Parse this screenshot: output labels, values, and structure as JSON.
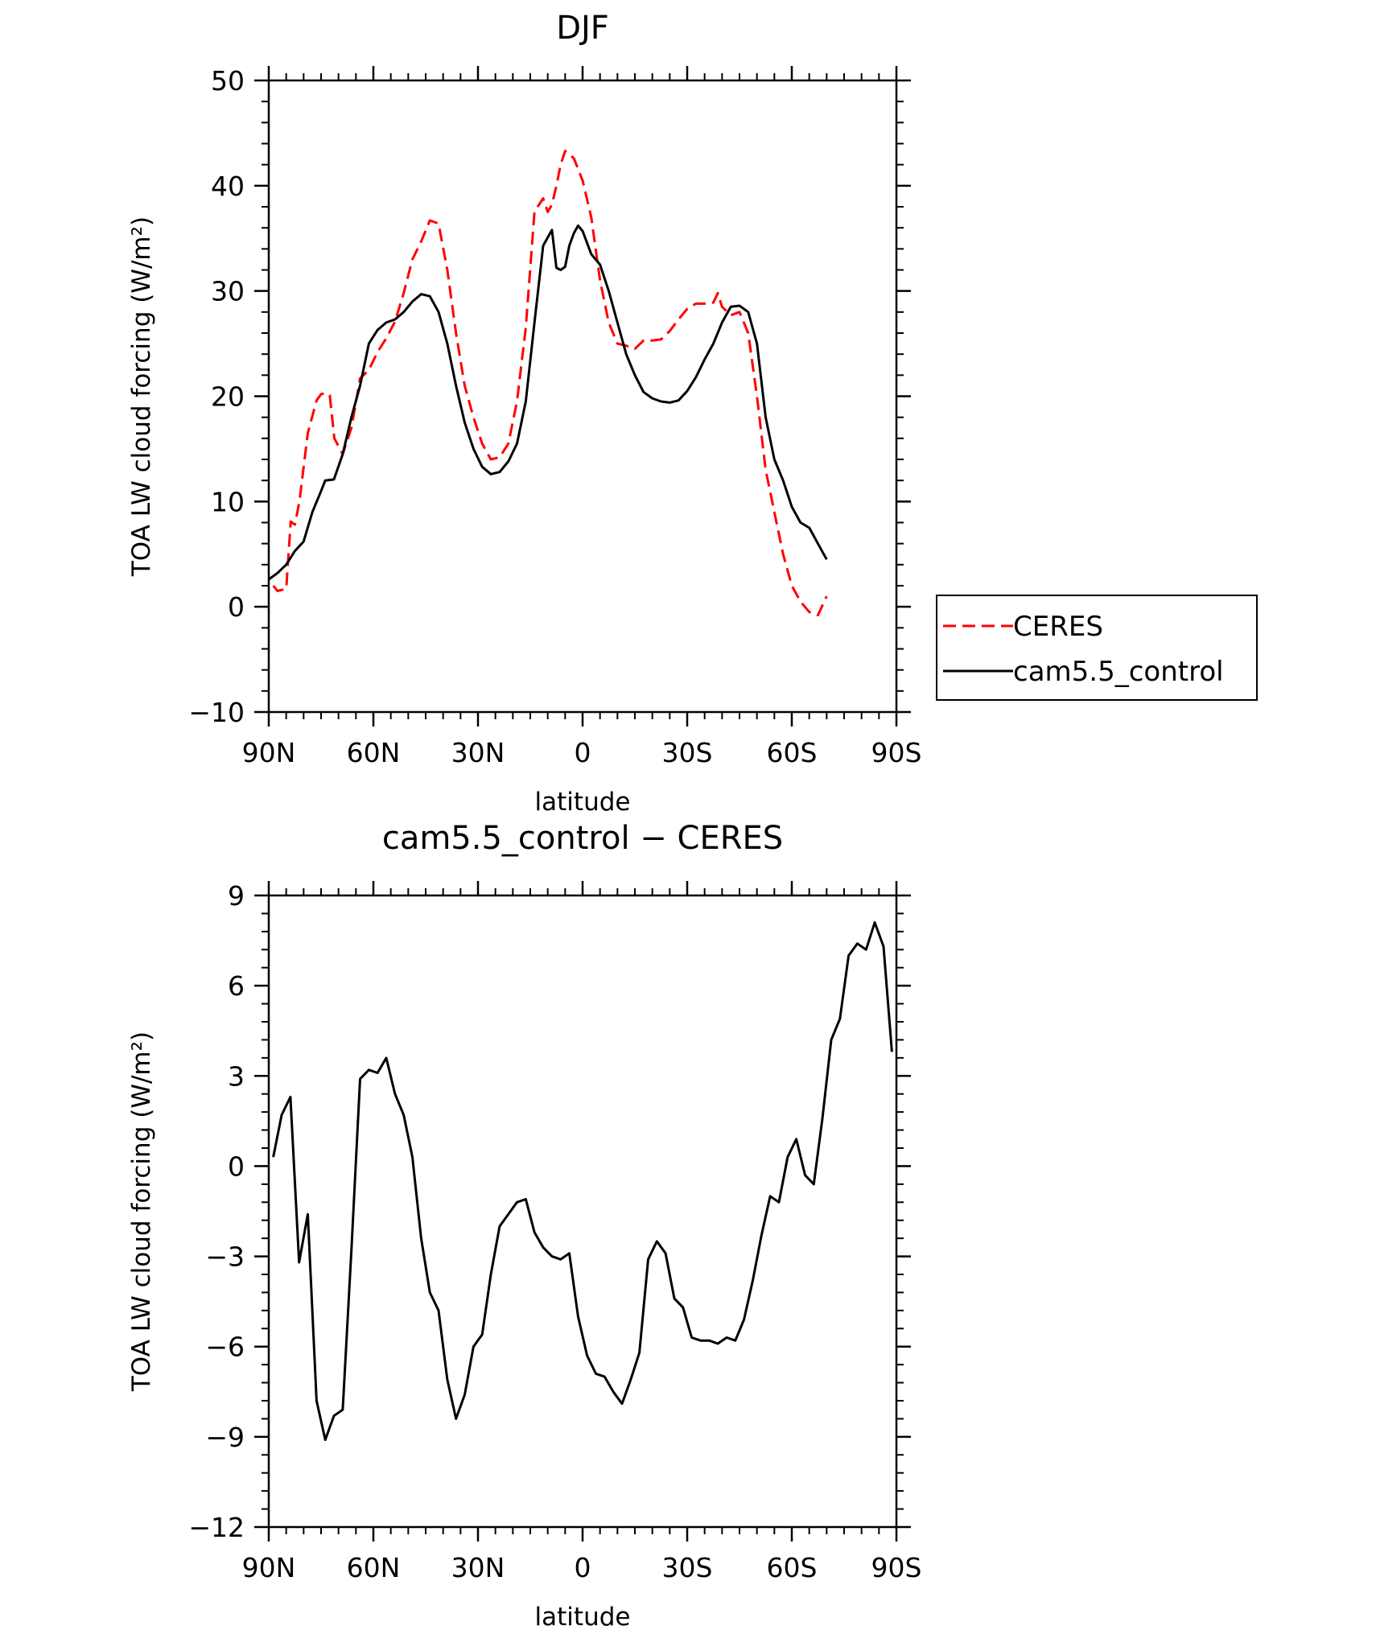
{
  "chart_data": [
    {
      "type": "line",
      "title": "DJF",
      "xlabel": "latitude",
      "ylabel": "TOA LW cloud forcing (W/m²)",
      "xlim": [
        90,
        -90
      ],
      "ylim": [
        -10,
        50
      ],
      "x_ticks": [
        90,
        60,
        30,
        0,
        -30,
        -60,
        -90
      ],
      "x_tick_labels": [
        "90N",
        "60N",
        "30N",
        "0",
        "30S",
        "60S",
        "90S"
      ],
      "y_ticks": [
        -10,
        0,
        10,
        20,
        30,
        40,
        50
      ],
      "y_tick_labels": [
        "−10",
        "0",
        "10",
        "20",
        "30",
        "40",
        "50"
      ],
      "legend": {
        "position": "right",
        "entries": [
          "CERES",
          "cam5.5_control"
        ]
      },
      "series": [
        {
          "name": "CERES",
          "color": "#ff0000",
          "style": "dashed",
          "points": [
            [
              88.7,
              2.0
            ],
            [
              87.5,
              1.5
            ],
            [
              85.0,
              1.7
            ],
            [
              83.7,
              8.1
            ],
            [
              82.5,
              7.8
            ],
            [
              81.2,
              10.0
            ],
            [
              78.8,
              16.5
            ],
            [
              76.3,
              19.6
            ],
            [
              75.0,
              20.2
            ],
            [
              73.8,
              20.3
            ],
            [
              72.5,
              20.1
            ],
            [
              71.2,
              16.0
            ],
            [
              68.8,
              14.5
            ],
            [
              66.3,
              17.0
            ],
            [
              63.8,
              21.7
            ],
            [
              61.3,
              22.5
            ],
            [
              58.8,
              24.2
            ],
            [
              56.3,
              25.5
            ],
            [
              53.8,
              27.1
            ],
            [
              51.3,
              29.8
            ],
            [
              48.8,
              33.0
            ],
            [
              46.3,
              34.7
            ],
            [
              43.8,
              36.7
            ],
            [
              41.3,
              36.4
            ],
            [
              38.8,
              32.0
            ],
            [
              36.3,
              26.0
            ],
            [
              33.8,
              21.0
            ],
            [
              31.3,
              18.0
            ],
            [
              28.8,
              15.5
            ],
            [
              26.3,
              14.0
            ],
            [
              23.8,
              14.2
            ],
            [
              21.3,
              15.5
            ],
            [
              18.8,
              19.5
            ],
            [
              16.3,
              26.5
            ],
            [
              13.8,
              37.5
            ],
            [
              12.5,
              38.2
            ],
            [
              11.3,
              38.8
            ],
            [
              10.0,
              37.5
            ],
            [
              8.8,
              38.2
            ],
            [
              7.5,
              40.0
            ],
            [
              6.3,
              42.0
            ],
            [
              5.0,
              43.3
            ],
            [
              3.8,
              43.0
            ],
            [
              2.5,
              42.6
            ],
            [
              0.0,
              40.5
            ],
            [
              -2.5,
              37.0
            ],
            [
              -5.0,
              31.0
            ],
            [
              -7.5,
              27.0
            ],
            [
              -10.0,
              25.0
            ],
            [
              -12.5,
              24.8
            ],
            [
              -15.0,
              24.5
            ],
            [
              -17.5,
              25.3
            ],
            [
              -20.0,
              25.3
            ],
            [
              -22.5,
              25.4
            ],
            [
              -25.0,
              26.2
            ],
            [
              -27.5,
              27.3
            ],
            [
              -30.0,
              28.3
            ],
            [
              -32.5,
              28.8
            ],
            [
              -35.0,
              28.8
            ],
            [
              -37.5,
              28.9
            ],
            [
              -38.8,
              29.8
            ],
            [
              -40.0,
              28.5
            ],
            [
              -42.5,
              27.7
            ],
            [
              -45.0,
              28.0
            ],
            [
              -47.5,
              26.0
            ],
            [
              -50.0,
              20.0
            ],
            [
              -52.5,
              13.0
            ],
            [
              -55.0,
              9.0
            ],
            [
              -57.5,
              5.0
            ],
            [
              -60.0,
              2.0
            ],
            [
              -62.5,
              0.5
            ],
            [
              -65.0,
              -0.5
            ],
            [
              -67.5,
              -0.8
            ],
            [
              -70.0,
              1.0
            ]
          ]
        },
        {
          "name": "cam5.5_control",
          "color": "#000000",
          "style": "solid",
          "points": [
            [
              90.0,
              2.6
            ],
            [
              87.5,
              3.2
            ],
            [
              85.0,
              4.0
            ],
            [
              82.5,
              5.3
            ],
            [
              80.0,
              6.2
            ],
            [
              77.5,
              9.0
            ],
            [
              75.0,
              11.0
            ],
            [
              73.8,
              12.0
            ],
            [
              71.3,
              12.1
            ],
            [
              68.8,
              14.5
            ],
            [
              66.3,
              18.0
            ],
            [
              63.8,
              21.0
            ],
            [
              61.3,
              25.0
            ],
            [
              58.8,
              26.3
            ],
            [
              56.3,
              27.0
            ],
            [
              53.8,
              27.3
            ],
            [
              51.3,
              28.0
            ],
            [
              48.8,
              29.0
            ],
            [
              46.3,
              29.7
            ],
            [
              43.8,
              29.5
            ],
            [
              41.3,
              28.0
            ],
            [
              38.8,
              25.0
            ],
            [
              36.3,
              21.0
            ],
            [
              33.8,
              17.5
            ],
            [
              31.3,
              15.0
            ],
            [
              28.8,
              13.3
            ],
            [
              26.3,
              12.6
            ],
            [
              23.8,
              12.8
            ],
            [
              21.3,
              13.8
            ],
            [
              18.8,
              15.5
            ],
            [
              16.3,
              19.5
            ],
            [
              13.8,
              27.0
            ],
            [
              11.3,
              34.3
            ],
            [
              8.8,
              35.8
            ],
            [
              7.5,
              32.2
            ],
            [
              6.3,
              32.0
            ],
            [
              5.0,
              32.3
            ],
            [
              3.8,
              34.3
            ],
            [
              2.5,
              35.5
            ],
            [
              1.3,
              36.2
            ],
            [
              0.0,
              35.7
            ],
            [
              -2.5,
              33.5
            ],
            [
              -5.0,
              32.5
            ],
            [
              -7.5,
              30.0
            ],
            [
              -10.0,
              27.0
            ],
            [
              -12.5,
              24.0
            ],
            [
              -15.0,
              22.0
            ],
            [
              -17.5,
              20.4
            ],
            [
              -20.0,
              19.8
            ],
            [
              -22.5,
              19.5
            ],
            [
              -25.0,
              19.4
            ],
            [
              -27.5,
              19.6
            ],
            [
              -30.0,
              20.5
            ],
            [
              -32.5,
              21.8
            ],
            [
              -35.0,
              23.5
            ],
            [
              -37.5,
              25.0
            ],
            [
              -40.0,
              27.0
            ],
            [
              -42.5,
              28.5
            ],
            [
              -45.0,
              28.6
            ],
            [
              -47.5,
              28.0
            ],
            [
              -50.0,
              25.0
            ],
            [
              -52.5,
              18.0
            ],
            [
              -55.0,
              14.0
            ],
            [
              -57.5,
              12.0
            ],
            [
              -60.0,
              9.5
            ],
            [
              -62.5,
              8.0
            ],
            [
              -65.0,
              7.5
            ],
            [
              -67.5,
              6.0
            ],
            [
              -70.0,
              4.5
            ]
          ]
        }
      ]
    },
    {
      "type": "line",
      "title": "cam5.5_control − CERES",
      "xlabel": "latitude",
      "ylabel": "TOA LW cloud forcing (W/m²)",
      "xlim": [
        90,
        -90
      ],
      "ylim": [
        -12,
        9
      ],
      "x_ticks": [
        90,
        60,
        30,
        0,
        -30,
        -60,
        -90
      ],
      "x_tick_labels": [
        "90N",
        "60N",
        "30N",
        "0",
        "30S",
        "60S",
        "90S"
      ],
      "y_ticks": [
        -12,
        -9,
        -6,
        -3,
        0,
        3,
        6,
        9
      ],
      "y_tick_labels": [
        "−12",
        "−9",
        "−6",
        "−3",
        "0",
        "3",
        "6",
        "9"
      ],
      "series": [
        {
          "name": "cam5.5_control",
          "color": "#000000",
          "style": "solid",
          "points": [
            [
              88.7,
              0.3
            ],
            [
              86.3,
              1.7
            ],
            [
              83.8,
              2.3
            ],
            [
              81.3,
              -3.2
            ],
            [
              78.8,
              -1.6
            ],
            [
              76.3,
              -7.8
            ],
            [
              73.8,
              -9.1
            ],
            [
              71.3,
              -8.3
            ],
            [
              68.8,
              -8.1
            ],
            [
              66.3,
              -2.8
            ],
            [
              63.8,
              2.9
            ],
            [
              61.3,
              3.2
            ],
            [
              58.8,
              3.1
            ],
            [
              56.3,
              3.6
            ],
            [
              53.8,
              2.4
            ],
            [
              51.3,
              1.7
            ],
            [
              48.8,
              0.3
            ],
            [
              46.3,
              -2.4
            ],
            [
              43.8,
              -4.2
            ],
            [
              41.3,
              -4.8
            ],
            [
              38.8,
              -7.1
            ],
            [
              36.3,
              -8.4
            ],
            [
              33.8,
              -7.6
            ],
            [
              31.3,
              -6.0
            ],
            [
              28.8,
              -5.6
            ],
            [
              26.3,
              -3.6
            ],
            [
              23.8,
              -2.0
            ],
            [
              21.3,
              -1.6
            ],
            [
              18.8,
              -1.2
            ],
            [
              16.3,
              -1.1
            ],
            [
              13.8,
              -2.2
            ],
            [
              11.3,
              -2.7
            ],
            [
              8.8,
              -3.0
            ],
            [
              6.3,
              -3.1
            ],
            [
              3.8,
              -2.9
            ],
            [
              1.3,
              -5.0
            ],
            [
              -1.3,
              -6.3
            ],
            [
              -3.8,
              -6.9
            ],
            [
              -6.3,
              -7.0
            ],
            [
              -8.8,
              -7.5
            ],
            [
              -11.3,
              -7.9
            ],
            [
              -13.8,
              -7.1
            ],
            [
              -16.3,
              -6.2
            ],
            [
              -18.8,
              -3.1
            ],
            [
              -21.3,
              -2.5
            ],
            [
              -23.8,
              -2.9
            ],
            [
              -26.3,
              -4.4
            ],
            [
              -28.8,
              -4.7
            ],
            [
              -31.3,
              -5.7
            ],
            [
              -33.8,
              -5.8
            ],
            [
              -36.3,
              -5.8
            ],
            [
              -38.8,
              -5.9
            ],
            [
              -41.3,
              -5.7
            ],
            [
              -43.8,
              -5.8
            ],
            [
              -46.3,
              -5.1
            ],
            [
              -48.8,
              -3.8
            ],
            [
              -51.3,
              -2.3
            ],
            [
              -53.8,
              -1.0
            ],
            [
              -56.3,
              -1.2
            ],
            [
              -58.8,
              0.3
            ],
            [
              -61.3,
              0.9
            ],
            [
              -63.8,
              -0.3
            ],
            [
              -66.3,
              -0.6
            ],
            [
              -68.8,
              1.6
            ],
            [
              -71.3,
              4.2
            ],
            [
              -73.8,
              4.9
            ],
            [
              -76.3,
              7.0
            ],
            [
              -78.8,
              7.4
            ],
            [
              -81.3,
              7.2
            ],
            [
              -83.8,
              8.1
            ],
            [
              -86.3,
              7.3
            ],
            [
              -88.7,
              3.8
            ]
          ]
        }
      ]
    }
  ]
}
